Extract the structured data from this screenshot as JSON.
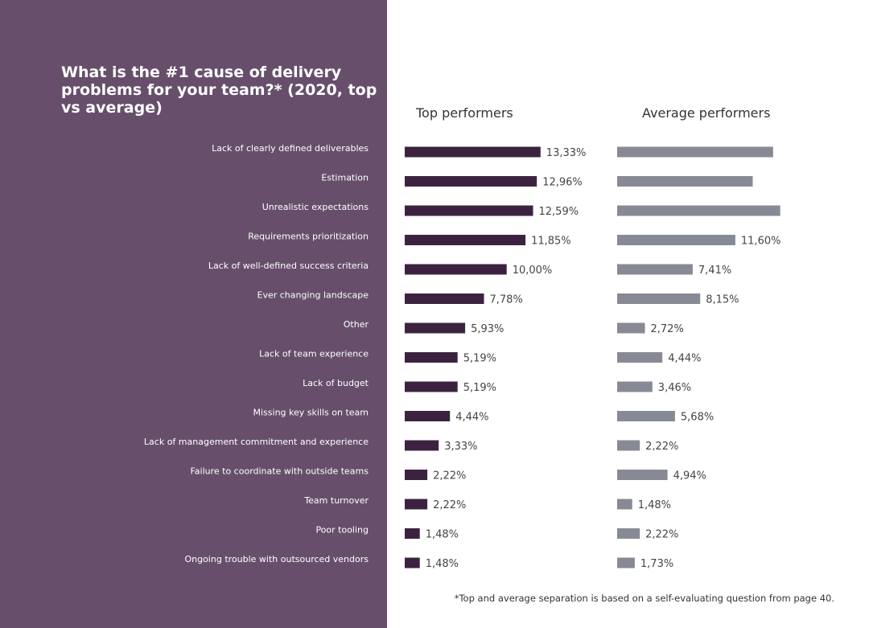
{
  "colors": {
    "panel": "#674f6c",
    "top_bar": "#3b2340",
    "avg_bar": "#878a95",
    "text_dark": "#444444"
  },
  "header": {
    "title": "What is the #1 cause of delivery problems for your team?* (2020, top vs average)"
  },
  "columns": {
    "top": "Top performers",
    "average": "Average performers"
  },
  "footnote": "*Top and average separation is based on a self-evaluating question from page 40.",
  "chart_data": {
    "type": "bar",
    "orientation": "horizontal",
    "title": "What is the #1 cause of delivery problems for your team?* (2020, top vs average)",
    "categories": [
      "Lack of clearly defined deliverables",
      "Estimation",
      "Unrealistic expectations",
      "Requirements prioritization",
      "Lack of well-defined success criteria",
      "Ever changing landscape",
      "Other",
      "Lack of team experience",
      "Lack of budget",
      "Missing key skills on team",
      "Lack of management commitment and experience",
      "Failure to coordinate with outside teams",
      "Team turnover",
      "Poor tooling",
      "Ongoing trouble with outsourced vendors"
    ],
    "series": [
      {
        "name": "Top performers",
        "values": [
          13.33,
          12.96,
          12.59,
          11.85,
          10.0,
          7.78,
          5.93,
          5.19,
          5.19,
          4.44,
          3.33,
          2.22,
          2.22,
          1.48,
          1.48
        ],
        "labels": [
          "13,33%",
          "12,96%",
          "12,59%",
          "11,85%",
          "10,00%",
          "7,78%",
          "5,93%",
          "5,19%",
          "5,19%",
          "4,44%",
          "3,33%",
          "2,22%",
          "2,22%",
          "1,48%",
          "1,48%"
        ]
      },
      {
        "name": "Average performers",
        "values": [
          15.3,
          13.3,
          16.0,
          11.6,
          7.41,
          8.15,
          2.72,
          4.44,
          3.46,
          5.68,
          2.22,
          4.94,
          1.48,
          2.22,
          1.73
        ],
        "labels": [
          "",
          "",
          "",
          "11,60%",
          "7,41%",
          "8,15%",
          "2,72%",
          "4,44%",
          "3,46%",
          "5,68%",
          "2,22%",
          "4,94%",
          "1,48%",
          "2,22%",
          "1,73%"
        ]
      }
    ],
    "xlim": [
      0,
      16.5
    ],
    "grid": false,
    "legend": "column headers"
  }
}
